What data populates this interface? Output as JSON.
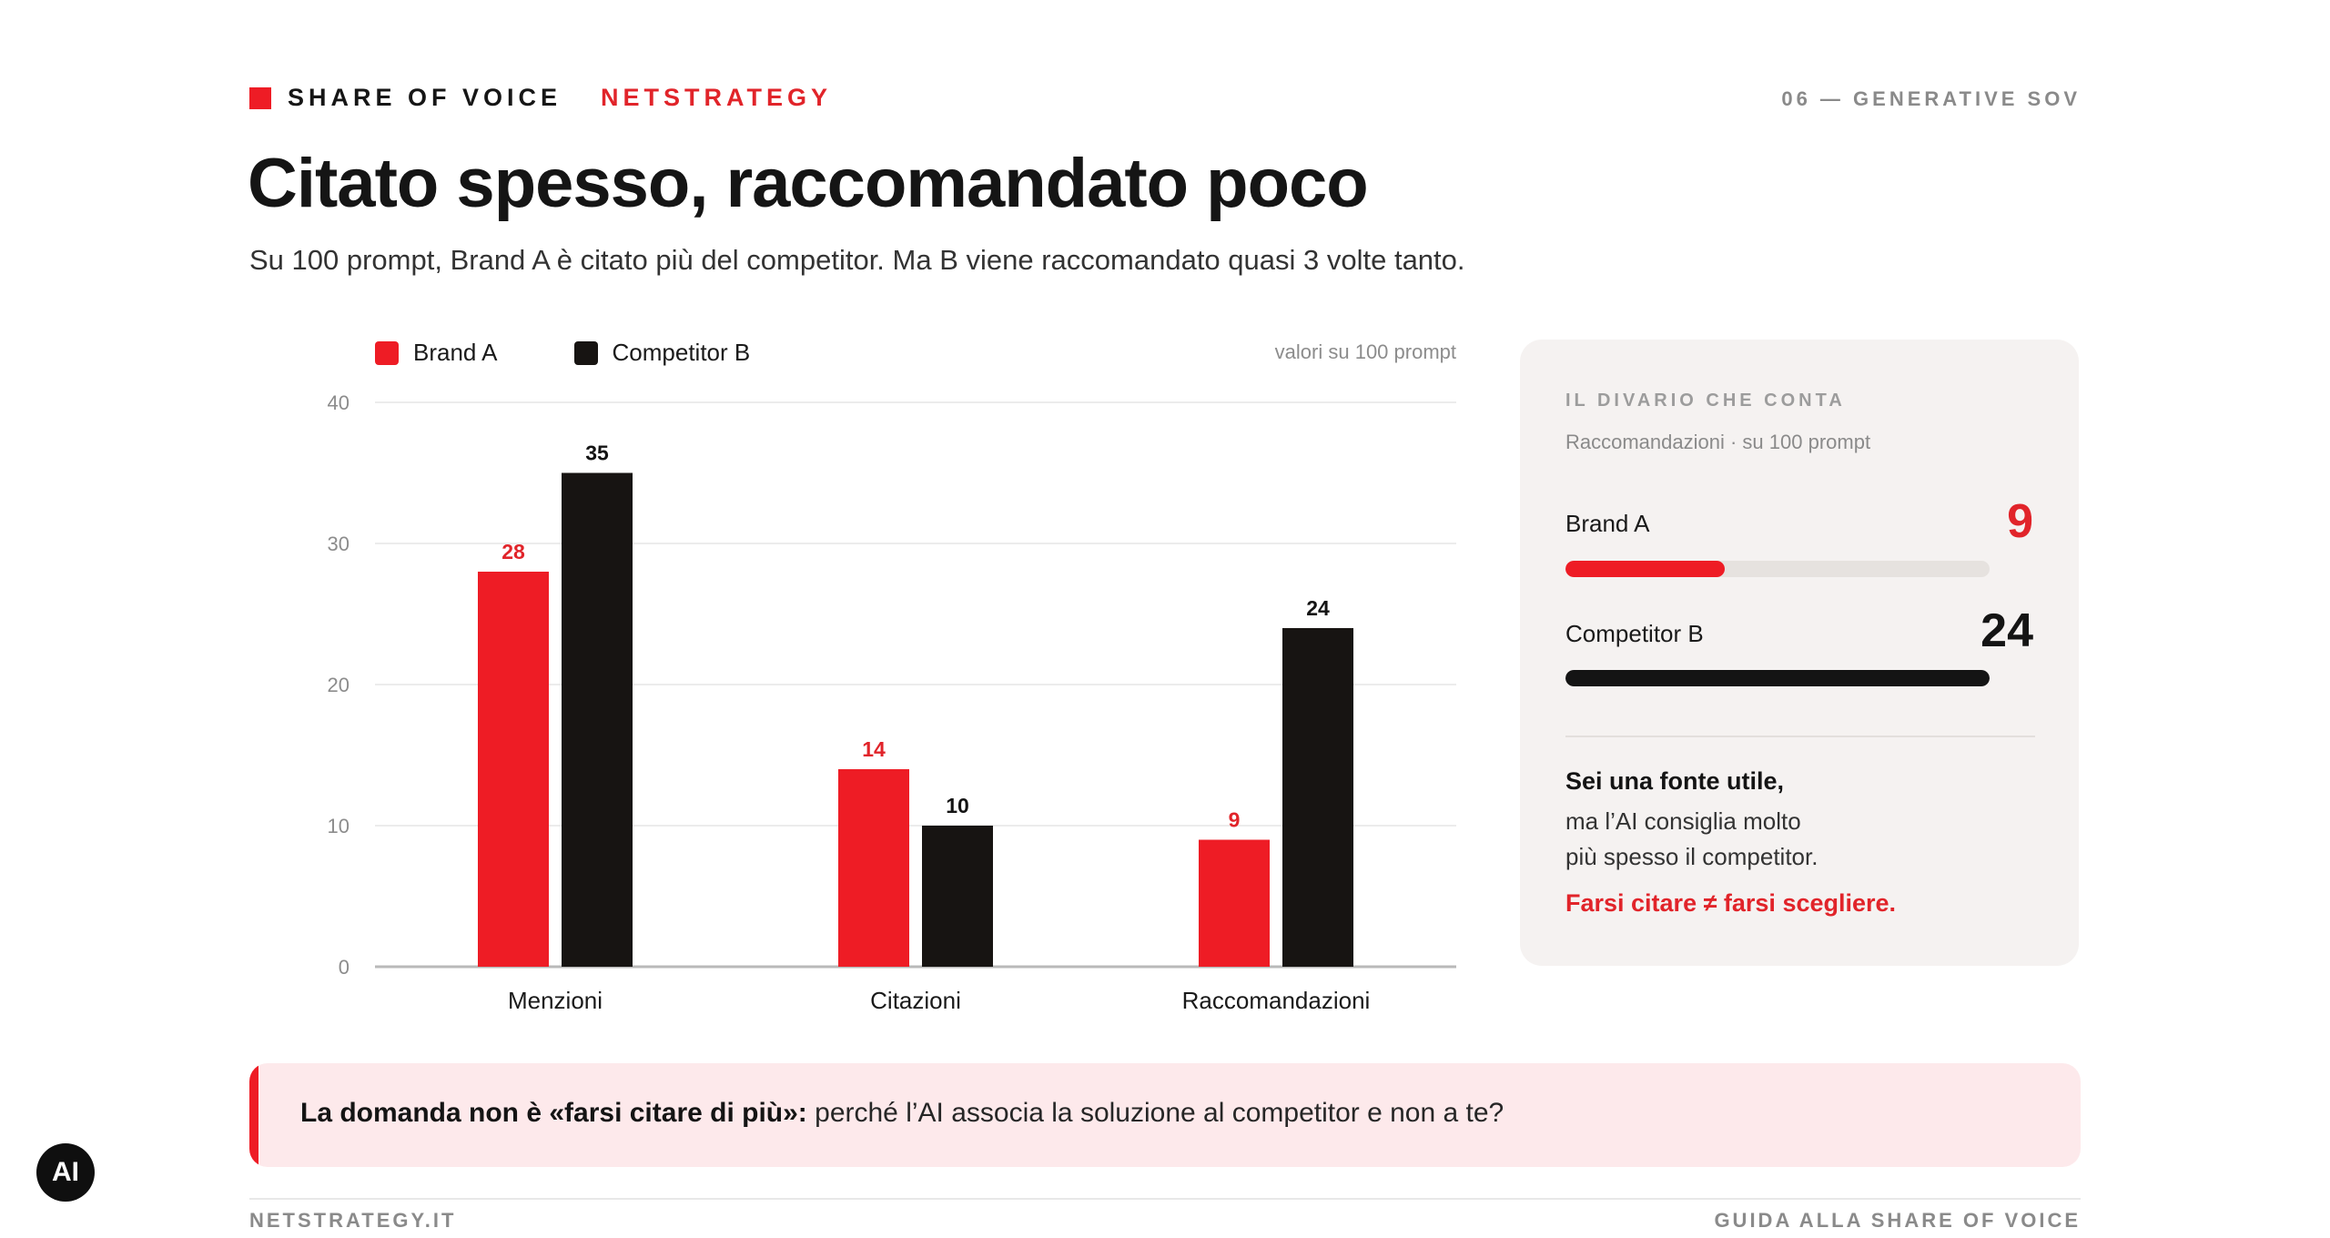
{
  "header": {
    "section_label": "SHARE OF VOICE",
    "brand": "NETSTRATEGY",
    "page_label": "06 — GENERATIVE SOV"
  },
  "title": "Citato spesso, raccomandato poco",
  "subtitle": "Su 100 prompt, Brand A è citato più del competitor. Ma B viene raccomandato quasi 3 volte tanto.",
  "legend": {
    "items": [
      "Brand A",
      "Competitor B"
    ],
    "scale_note": "valori su 100 prompt"
  },
  "colors": {
    "brand_a": "#ee1c25",
    "competitor_b": "#171412",
    "accent": "#e1242a"
  },
  "chart_data": {
    "type": "bar",
    "categories": [
      "Menzioni",
      "Citazioni",
      "Raccomandazioni"
    ],
    "series": [
      {
        "name": "Brand A",
        "values": [
          28,
          14,
          9
        ]
      },
      {
        "name": "Competitor B",
        "values": [
          35,
          10,
          24
        ]
      }
    ],
    "ylim": [
      0,
      40
    ],
    "yticks": [
      0,
      10,
      20,
      30,
      40
    ],
    "grid": true,
    "legend_position": "top-left",
    "data_labels": true
  },
  "panel": {
    "kicker": "IL DIVARIO CHE CONTA",
    "subtitle": "Raccomandazioni · su 100 prompt",
    "rows": [
      {
        "label": "Brand A",
        "value": "9",
        "fraction": 0.375
      },
      {
        "label": "Competitor B",
        "value": "24",
        "fraction": 1.0
      }
    ],
    "bold_line": "Sei una fonte utile,",
    "body_line_1": "ma l’AI consiglia molto",
    "body_line_2": "più spesso il competitor.",
    "highlight": "Farsi citare ≠ farsi scegliere."
  },
  "callout": {
    "bold": "La domanda non è «farsi citare di più»:",
    "text": " perché l’AI associa la soluzione al competitor e non a te?"
  },
  "footer": {
    "left": "NETSTRATEGY.IT",
    "right": "GUIDA ALLA SHARE OF VOICE"
  },
  "badge": "AI"
}
